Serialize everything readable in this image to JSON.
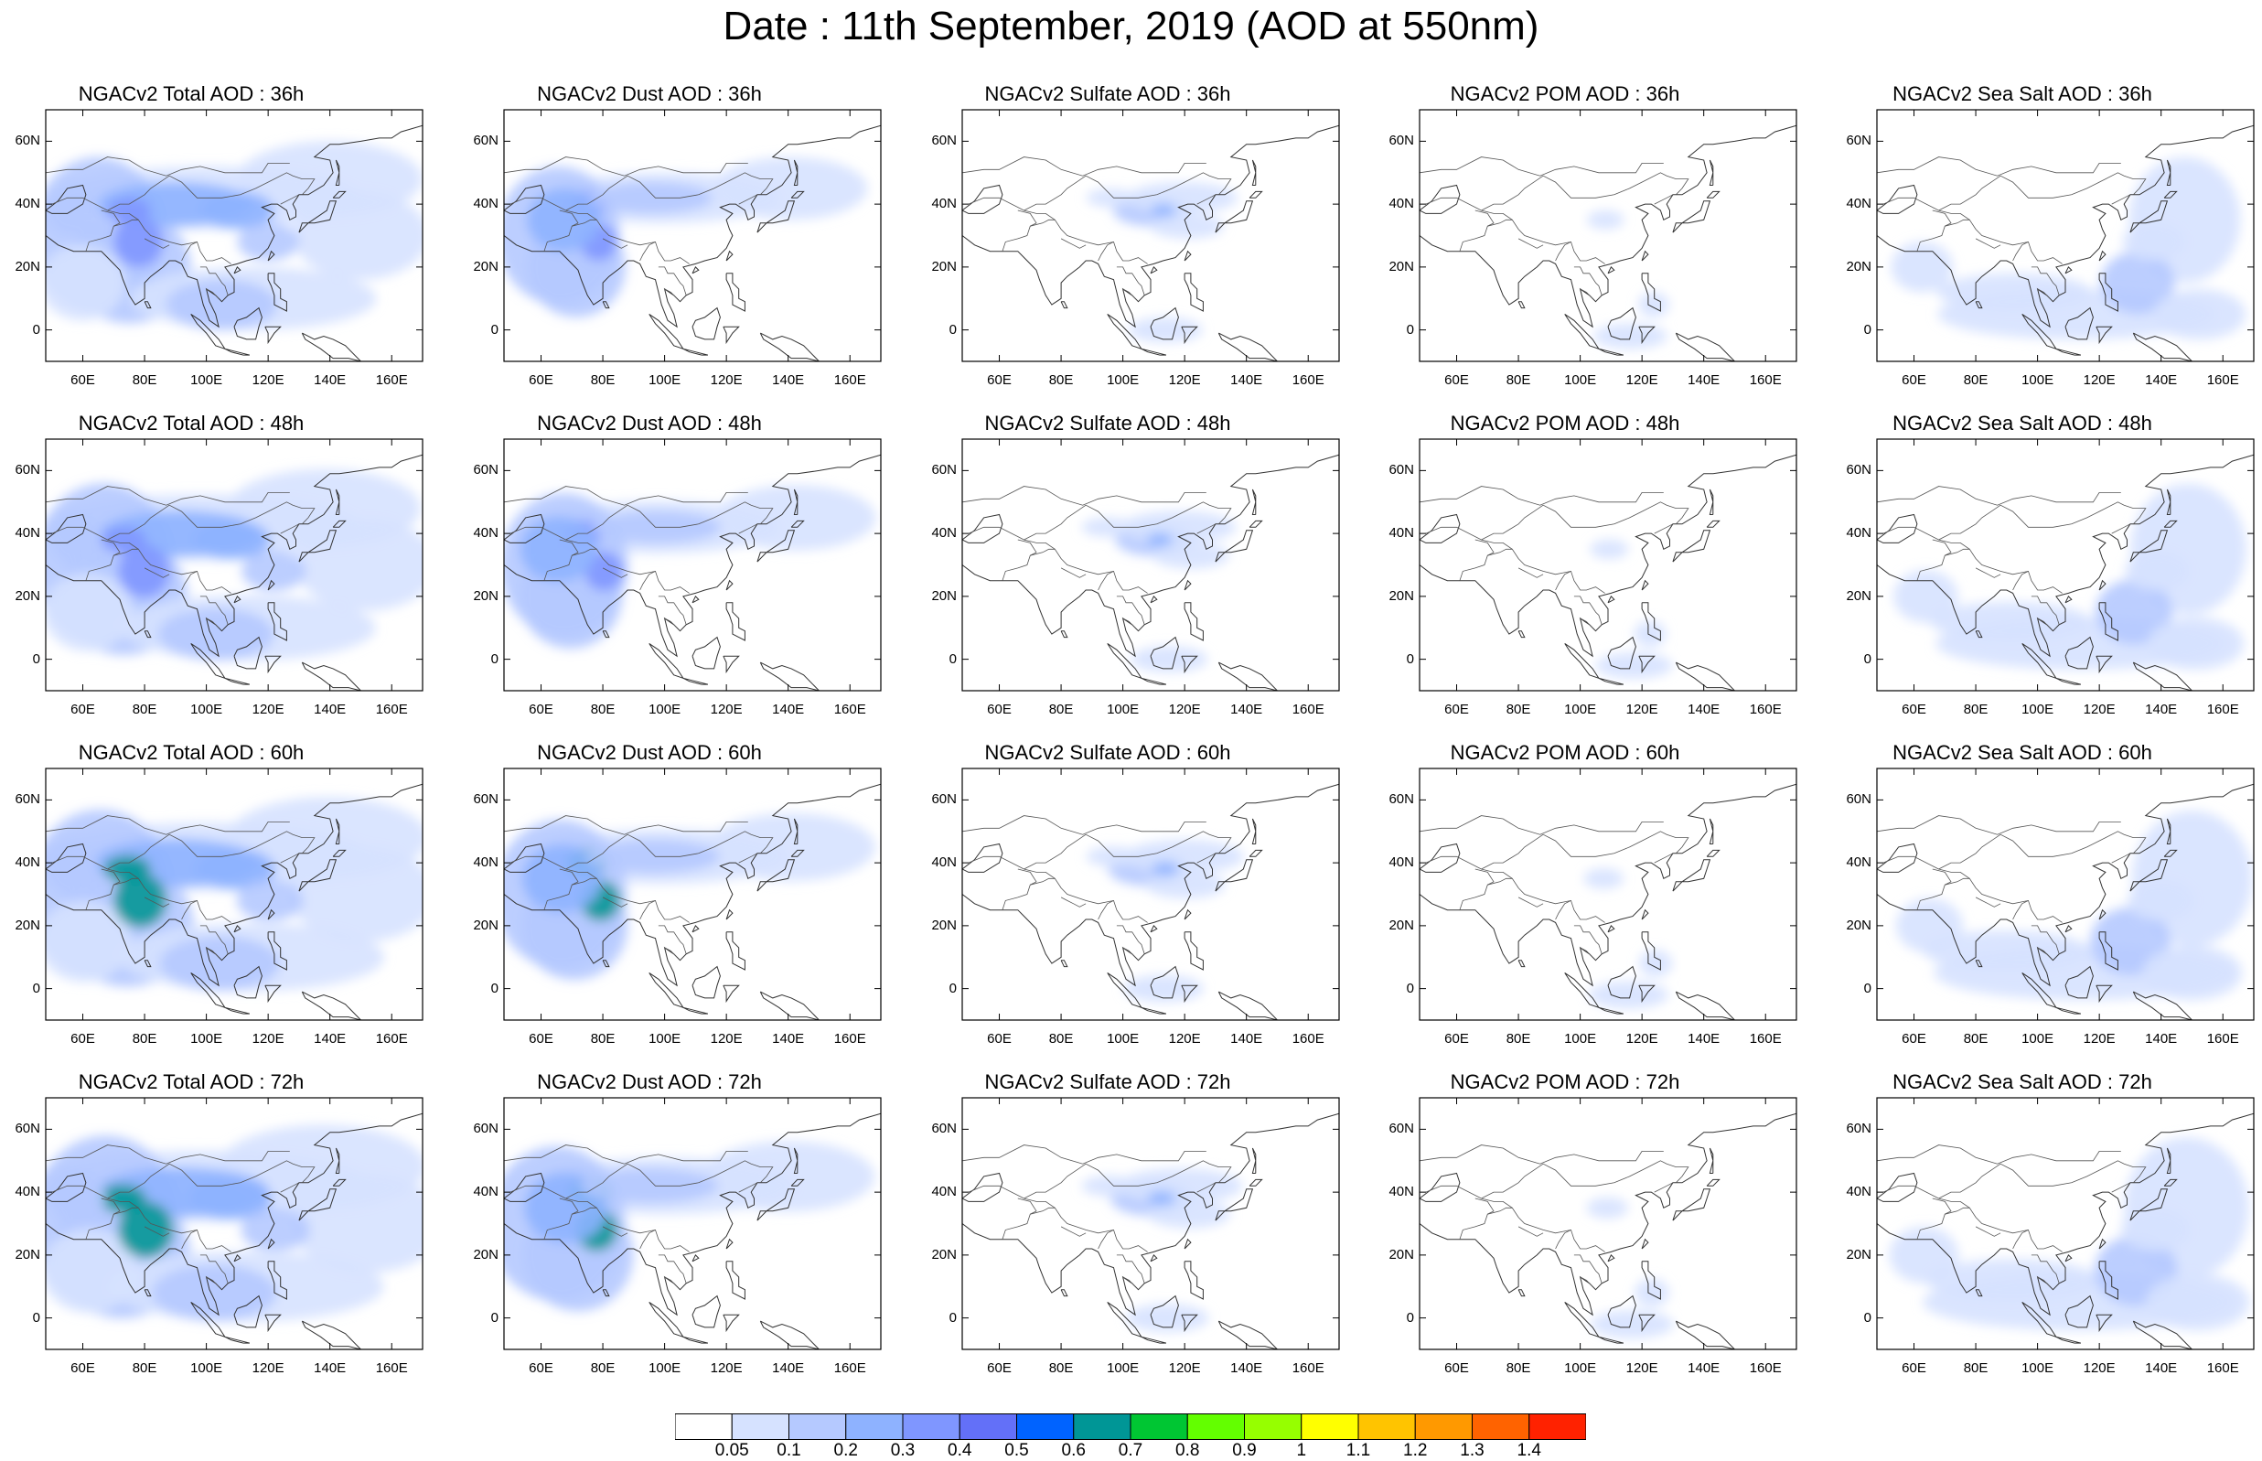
{
  "title": "Date : 11th September, 2019 (AOD at 550nm)",
  "map": {
    "lon_range": [
      48,
      170
    ],
    "lat_range": [
      -10,
      70
    ],
    "lat_ticks": [
      "60N",
      "40N",
      "20N",
      "0"
    ],
    "lat_tick_values": [
      60,
      40,
      20,
      0
    ],
    "lon_ticks": [
      "60E",
      "80E",
      "100E",
      "120E",
      "140E",
      "160E"
    ],
    "lon_tick_values": [
      60,
      80,
      100,
      120,
      140,
      160
    ]
  },
  "panels": [
    {
      "title": "NGACv2 Total AOD : 36h",
      "species": "total"
    },
    {
      "title": "NGACv2 Dust AOD : 36h",
      "species": "dust"
    },
    {
      "title": "NGACv2 Sulfate AOD : 36h",
      "species": "sulfate"
    },
    {
      "title": "NGACv2 POM AOD : 36h",
      "species": "pom"
    },
    {
      "title": "NGACv2 Sea Salt AOD : 36h",
      "species": "seasalt"
    },
    {
      "title": "NGACv2 Total AOD : 48h",
      "species": "total"
    },
    {
      "title": "NGACv2 Dust AOD : 48h",
      "species": "dust"
    },
    {
      "title": "NGACv2 Sulfate AOD : 48h",
      "species": "sulfate"
    },
    {
      "title": "NGACv2 POM AOD : 48h",
      "species": "pom"
    },
    {
      "title": "NGACv2 Sea Salt AOD : 48h",
      "species": "seasalt"
    },
    {
      "title": "NGACv2 Total AOD : 60h",
      "species": "total"
    },
    {
      "title": "NGACv2 Dust AOD : 60h",
      "species": "dust"
    },
    {
      "title": "NGACv2 Sulfate AOD : 60h",
      "species": "sulfate"
    },
    {
      "title": "NGACv2 POM AOD : 60h",
      "species": "pom"
    },
    {
      "title": "NGACv2 Sea Salt AOD : 60h",
      "species": "seasalt"
    },
    {
      "title": "NGACv2 Total AOD : 72h",
      "species": "total"
    },
    {
      "title": "NGACv2 Dust AOD : 72h",
      "species": "dust"
    },
    {
      "title": "NGACv2 Sulfate AOD : 72h",
      "species": "sulfate"
    },
    {
      "title": "NGACv2 POM AOD : 72h",
      "species": "pom"
    },
    {
      "title": "NGACv2 Sea Salt  AOD : 72h",
      "species": "seasalt"
    }
  ],
  "colorbar": {
    "labels": [
      "0.05",
      "0.1",
      "0.2",
      "0.3",
      "0.4",
      "0.5",
      "0.6",
      "0.7",
      "0.8",
      "0.9",
      "1",
      "1.1",
      "1.2",
      "1.3",
      "1.4"
    ],
    "colors": [
      "#ffffff",
      "#d6e2ff",
      "#b5c9ff",
      "#8eb2ff",
      "#7f96ff",
      "#6370f8",
      "#0063ff",
      "#009696",
      "#00c633",
      "#63ff00",
      "#96ff00",
      "#ffff00",
      "#ffc400",
      "#ff9900",
      "#ff6300",
      "#ff2200"
    ]
  }
}
